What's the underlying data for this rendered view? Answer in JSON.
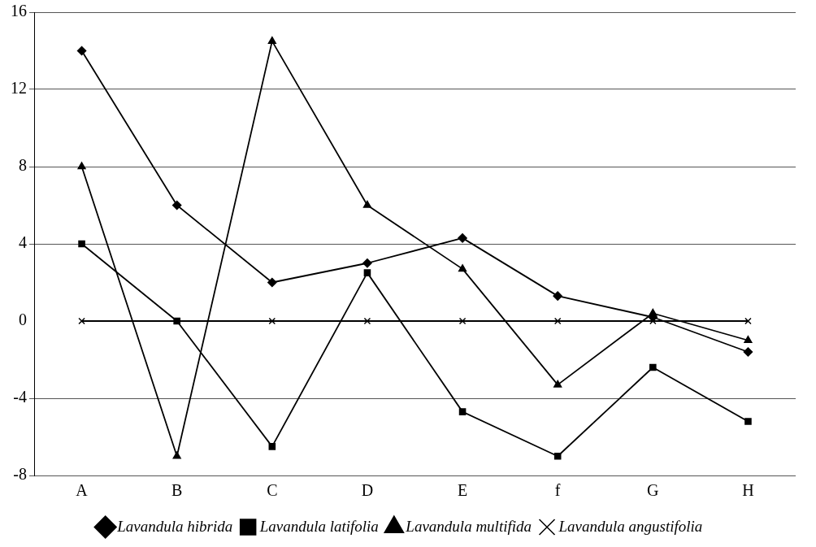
{
  "chart_data": {
    "type": "line",
    "categories": [
      "A",
      "B",
      "C",
      "D",
      "E",
      "f",
      "G",
      "H"
    ],
    "series": [
      {
        "name": "Lavandula hibrida",
        "color": "#000000",
        "marker": "diamond",
        "values": [
          14,
          6,
          2,
          3,
          4.3,
          1.3,
          0.2,
          -1.6
        ]
      },
      {
        "name": "Lavandula latifolia",
        "color": "#000000",
        "marker": "square",
        "values": [
          4,
          0,
          -6.5,
          2.5,
          -4.7,
          -7,
          -2.4,
          -5.2
        ]
      },
      {
        "name": "Lavandula multifida",
        "color": "#000000",
        "marker": "triangle",
        "values": [
          8,
          -7,
          14.5,
          6,
          2.7,
          -3.3,
          0.4,
          -1
        ]
      },
      {
        "name": "Lavandula angustifolia",
        "color": "#000000",
        "marker": "cross",
        "values": [
          0,
          0,
          0,
          0,
          0,
          0,
          0,
          0
        ]
      }
    ],
    "ylim": [
      -8,
      16
    ],
    "yticks": [
      -8,
      -4,
      0,
      4,
      8,
      12,
      16
    ],
    "grid": "y",
    "legend": "bottom",
    "line_style": "solid"
  }
}
